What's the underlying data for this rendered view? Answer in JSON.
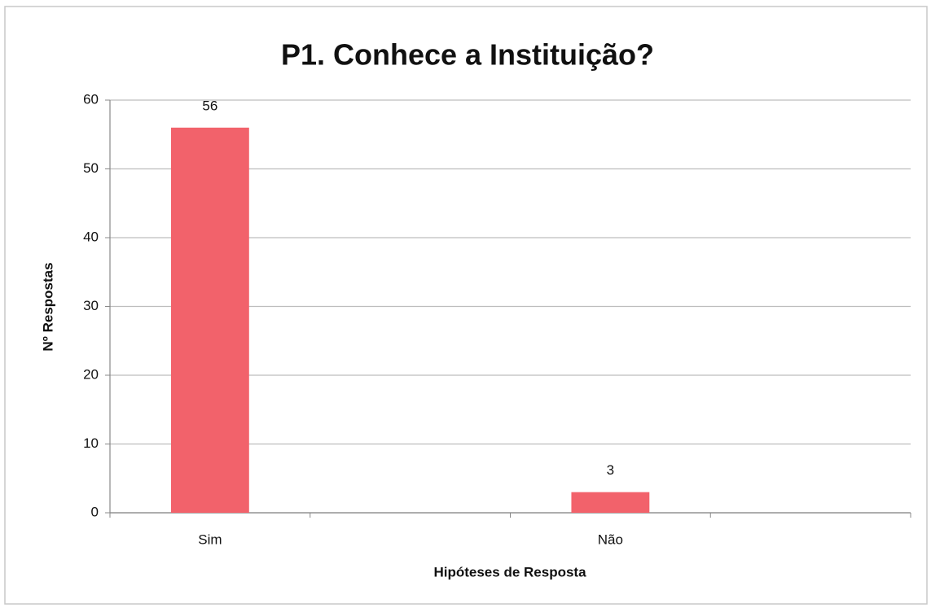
{
  "chart_data": {
    "type": "bar",
    "title": "P1. Conhece a Instituição?",
    "x_label": "Hipóteses de Resposta",
    "y_label": "Nº Respostas",
    "categories": [
      "Sim",
      null,
      "Não",
      null
    ],
    "values": [
      56,
      null,
      3,
      null
    ],
    "color": "#f2626b",
    "ylim": [
      0,
      60
    ],
    "yticks": [
      0,
      10,
      20,
      30,
      40,
      50,
      60
    ],
    "grid": true
  }
}
